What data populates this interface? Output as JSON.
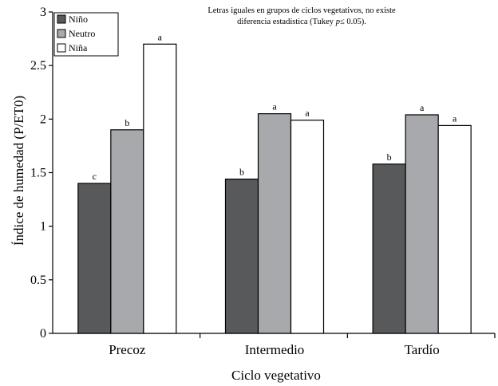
{
  "chart_data": {
    "type": "bar",
    "title": "",
    "xlabel": "Ciclo vegetativo",
    "ylabel": "Índice de humedad (P/ET0)",
    "ylim": [
      0,
      3
    ],
    "yticks": [
      "0",
      "0.5",
      "1",
      "1.5",
      "2",
      "2.5",
      "3"
    ],
    "categories": [
      "Precoz",
      "Intermedio",
      "Tardío"
    ],
    "series": [
      {
        "name": "Niño",
        "color": "#58595b",
        "values": [
          1.4,
          1.44,
          1.58
        ],
        "labels": [
          "c",
          "b",
          "b"
        ]
      },
      {
        "name": "Neutro",
        "color": "#a7a9ac",
        "values": [
          1.9,
          2.05,
          2.04
        ],
        "labels": [
          "b",
          "a",
          "a"
        ]
      },
      {
        "name": "Niña",
        "color": "#ffffff",
        "values": [
          2.7,
          1.99,
          1.94
        ],
        "labels": [
          "a",
          "a",
          "a"
        ]
      }
    ],
    "legend": "top-left",
    "annotation": {
      "line1": "Letras iguales en grupos de ciclos vegetativos, no existe",
      "line2_prefix": "diferencia estadística (Tukey ",
      "line2_p": "p",
      "line2_suffix": "≤ 0.05)."
    }
  }
}
